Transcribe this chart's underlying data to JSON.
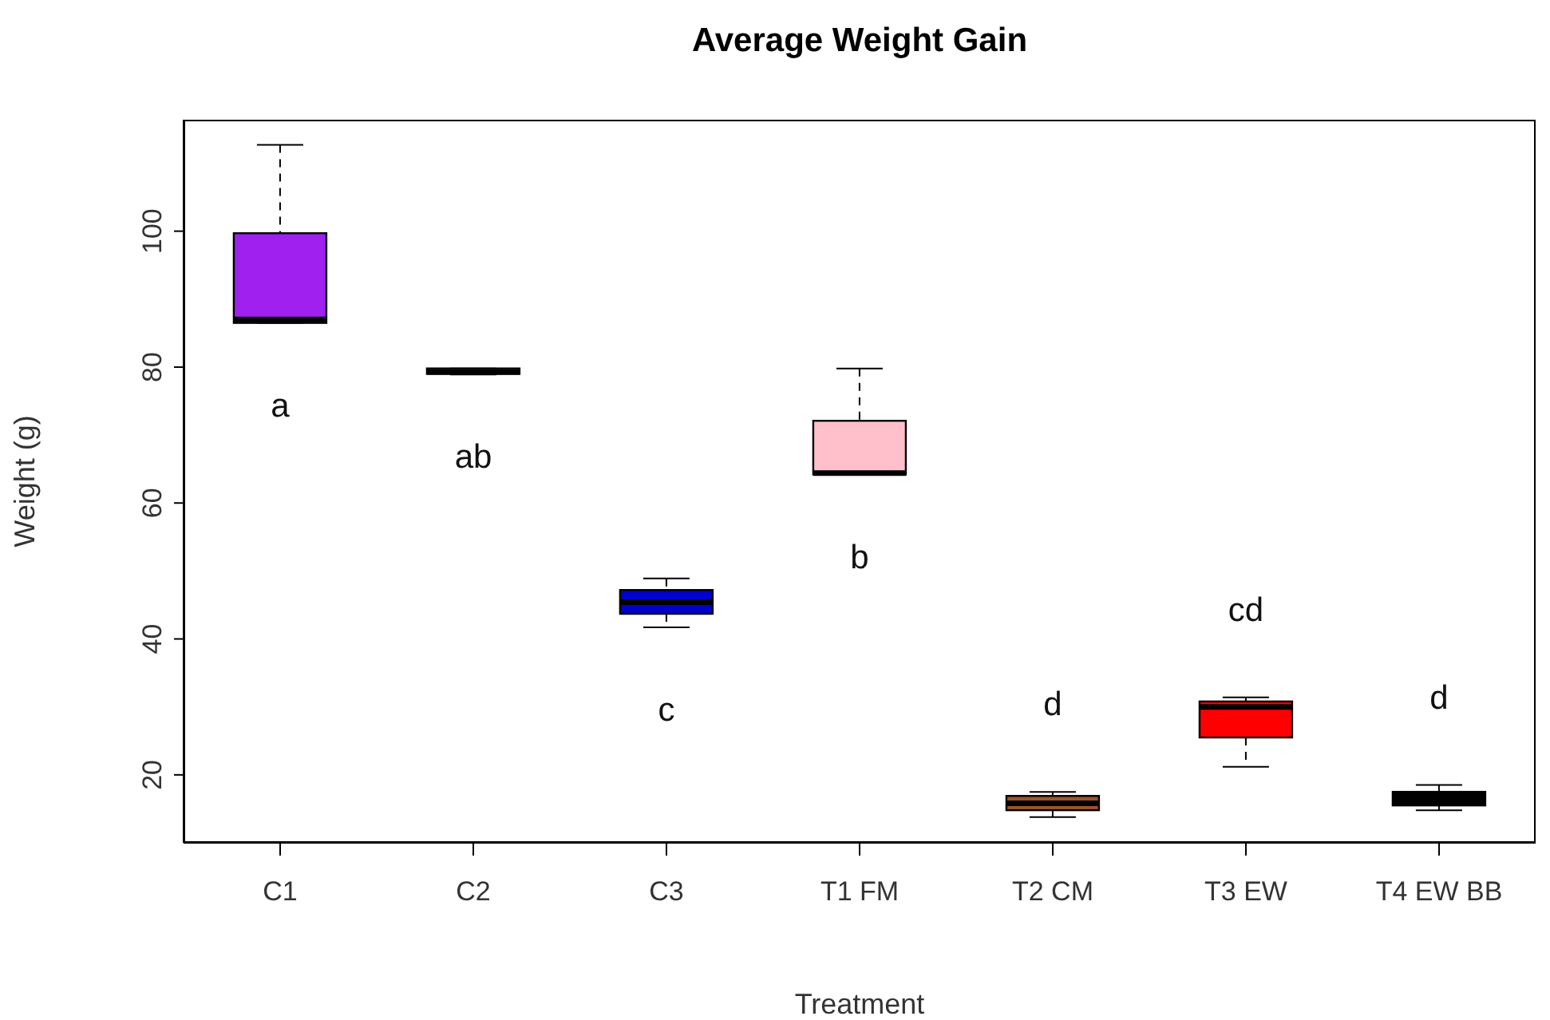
{
  "chart_data": {
    "type": "box",
    "title": "Average Weight Gain",
    "xlabel": "Treatment",
    "ylabel": "Weight (g)",
    "categories": [
      "C1",
      "C2",
      "C3",
      "T1 FM",
      "T2 CM",
      "T3 EW",
      "T4 EW BB"
    ],
    "colors": [
      "#a020f0",
      "#ffffff",
      "#0000cd",
      "#ffc0cb",
      "#a0522d",
      "#ff0000",
      "#000000"
    ],
    "boxes": [
      {
        "low": 86.5,
        "q1": 86.5,
        "median": 87,
        "q3": 99.7,
        "high": 112.7
      },
      {
        "low": 78.9,
        "q1": 79,
        "median": 79.3,
        "q3": 79.8,
        "high": 79.8
      },
      {
        "low": 41.7,
        "q1": 43.7,
        "median": 45.4,
        "q3": 47.2,
        "high": 48.9
      },
      {
        "low": 64.2,
        "q1": 64.2,
        "median": 64.4,
        "q3": 72.1,
        "high": 79.8
      },
      {
        "low": 13.8,
        "q1": 14.8,
        "median": 15.8,
        "q3": 16.9,
        "high": 17.5
      },
      {
        "low": 21.2,
        "q1": 25.5,
        "median": 30,
        "q3": 30.8,
        "high": 31.4
      },
      {
        "low": 14.8,
        "q1": 15.5,
        "median": 16.5,
        "q3": 17.5,
        "high": 18.5
      }
    ],
    "annotations": [
      "a",
      "ab",
      "c",
      "b",
      "d",
      "cd",
      "d"
    ],
    "ylim": [
      10,
      116.4
    ],
    "yticks": [
      20,
      40,
      60,
      80,
      100
    ],
    "grid": false,
    "legend": false
  }
}
